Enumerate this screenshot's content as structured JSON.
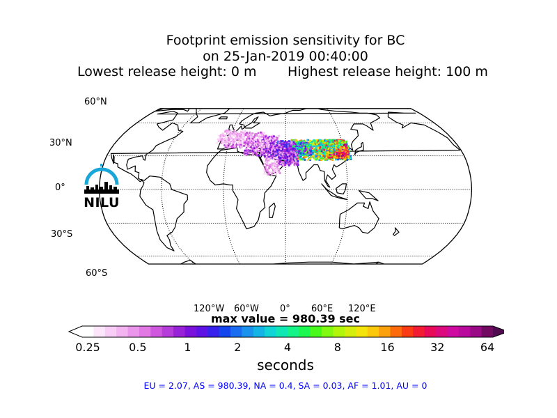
{
  "title": {
    "line1": "Footprint emission sensitivity for BC",
    "line2": "on 25-Jan-2019 00:40:00",
    "lowest": "Lowest release height: 0 m",
    "highest": "Highest release height: 100 m"
  },
  "map": {
    "projection": "robinson",
    "lat_labels": [
      "60°N",
      "30°N",
      "0°",
      "30°S",
      "60°S"
    ],
    "lon_labels": [
      "120°W",
      "60°W",
      "0°",
      "60°E",
      "120°E"
    ],
    "plume_region": "Europe to East Asia",
    "colors": {
      "land_outline": "#000000",
      "background": "#ffffff"
    }
  },
  "max_value": "max value = 980.39 sec",
  "colorbar": {
    "ticks": [
      "0.25",
      "0.5",
      "1",
      "2",
      "4",
      "8",
      "16",
      "32",
      "64"
    ],
    "label": "seconds",
    "colors": [
      "#ffffff",
      "#fde6fb",
      "#f8cdf6",
      "#f3b4f1",
      "#eb96eb",
      "#e178e4",
      "#cf58de",
      "#b73ddb",
      "#9722d8",
      "#7b12dc",
      "#5f12e4",
      "#3622ec",
      "#1446ee",
      "#1a6cf0",
      "#1a92ee",
      "#14b4e6",
      "#10d4d6",
      "#10e8b4",
      "#14f488",
      "#1cf850",
      "#48fa1c",
      "#80fa10",
      "#b2f60c",
      "#d6ee0c",
      "#f4e40c",
      "#fcc80c",
      "#fca00c",
      "#fc6c0c",
      "#fa3c14",
      "#f21c34",
      "#e80c58",
      "#dc0a7c",
      "#ce0aa0",
      "#b80a9c",
      "#9a0a84",
      "#720a62"
    ]
  },
  "stats": "EU = 2.07,  AS = 980.39,  NA = 0.4,  SA = 0.03,  AF = 1.01,  AU = 0",
  "logo": {
    "text": "NILU",
    "accent": "#19a7d8"
  }
}
